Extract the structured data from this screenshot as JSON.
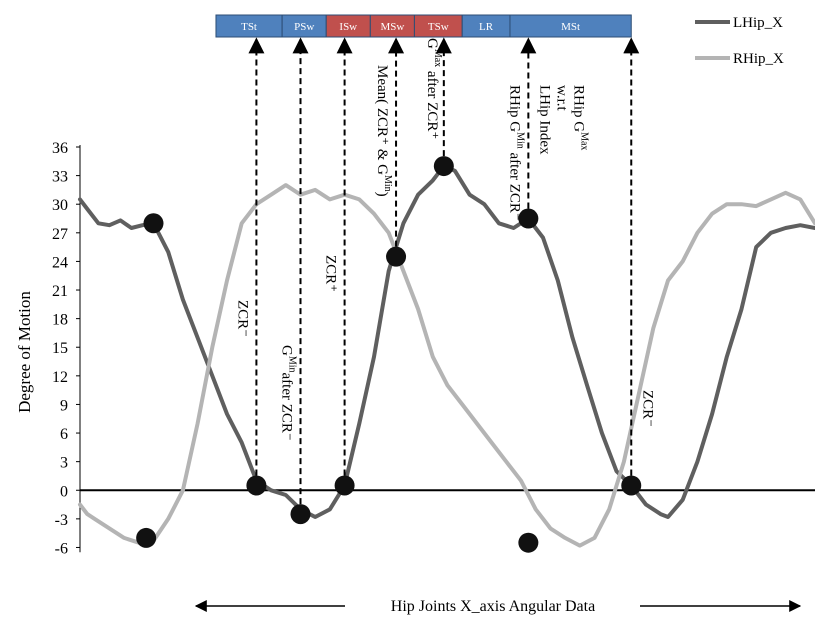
{
  "chart_data": {
    "type": "line",
    "title": "",
    "xlabel": "Hip Joints X_axis Angular Data",
    "ylabel": "Degree of Motion",
    "ylim": [
      -7,
      36
    ],
    "yticks": [
      -6,
      -3,
      0,
      3,
      6,
      9,
      12,
      15,
      18,
      21,
      24,
      27,
      30,
      33,
      36
    ],
    "grid": false,
    "legend_position": "top-right",
    "xrange": [
      0,
      100
    ],
    "series": [
      {
        "name": "LHip_X",
        "color": "#5f5f5f",
        "x": [
          0,
          1,
          2.5,
          4,
          5.5,
          7,
          8.5,
          10,
          12,
          14,
          16,
          18,
          20,
          22,
          24,
          26,
          28,
          30,
          32,
          34,
          36,
          38,
          40,
          42,
          44,
          46,
          48,
          49.5,
          51,
          53,
          55,
          57,
          59,
          61,
          63,
          65,
          67,
          69,
          71,
          73,
          75,
          77,
          78,
          79,
          80,
          82,
          84,
          86,
          88,
          90,
          92,
          94,
          96,
          98,
          100
        ],
        "y": [
          30.5,
          29.5,
          28,
          27.8,
          28.3,
          27.5,
          27.8,
          28,
          25,
          20,
          16,
          12,
          8,
          5,
          1,
          0,
          -0.5,
          -2,
          -2.8,
          -2,
          0.5,
          7,
          14,
          23,
          28,
          31,
          32.5,
          34,
          33.5,
          31,
          30,
          28,
          27.5,
          28.5,
          26.5,
          22,
          16,
          11,
          6,
          2,
          0.5,
          -1.5,
          -2,
          -2.5,
          -2.8,
          -1,
          3,
          8,
          14,
          19,
          25.5,
          27,
          27.5,
          27.8,
          27.5
        ]
      },
      {
        "name": "RHip_X",
        "color": "#b4b4b4",
        "x": [
          0,
          1,
          2,
          4,
          6,
          8,
          10,
          12,
          13,
          14,
          16,
          18,
          20,
          22,
          24,
          26,
          28,
          30,
          32,
          34,
          36,
          38,
          40,
          42,
          44,
          46,
          48,
          50,
          52,
          54,
          56,
          58,
          60,
          62,
          64,
          66,
          68,
          70,
          72,
          74,
          76,
          78,
          80,
          82,
          84,
          86,
          88,
          90,
          92,
          94,
          96,
          98,
          100
        ],
        "y": [
          -1.5,
          -2.5,
          -3,
          -4,
          -5,
          -5.5,
          -5.3,
          -3,
          -1.5,
          0,
          7,
          15,
          22,
          28,
          30,
          31,
          32,
          31,
          31.5,
          30.5,
          31,
          30.5,
          29,
          27,
          23,
          19,
          14,
          11,
          9,
          7,
          5,
          3,
          1,
          -2,
          -4,
          -5,
          -5.8,
          -5,
          -2,
          3,
          10,
          17,
          22,
          24,
          27,
          29,
          30,
          30,
          29.8,
          30.5,
          31.2,
          30.5,
          28
        ]
      }
    ],
    "key_points": [
      {
        "x": 10,
        "y": 28
      },
      {
        "x": 9,
        "y": -5
      },
      {
        "x": 24,
        "y": 0.5
      },
      {
        "x": 30,
        "y": -2.5
      },
      {
        "x": 36,
        "y": 0.5
      },
      {
        "x": 43,
        "y": 24.5
      },
      {
        "x": 49.5,
        "y": 34
      },
      {
        "x": 61,
        "y": 28.5
      },
      {
        "x": 61,
        "y": -5.5
      },
      {
        "x": 75,
        "y": 0.5
      }
    ],
    "phase_bar": [
      {
        "label": "TSt",
        "color": "#4f81bd",
        "x0": 18.5,
        "x1": 27.5
      },
      {
        "label": "PSw",
        "color": "#4f81bd",
        "x0": 27.5,
        "x1": 33.5
      },
      {
        "label": "ISw",
        "color": "#c0504d",
        "x0": 33.5,
        "x1": 39.5
      },
      {
        "label": "MSw",
        "color": "#c0504d",
        "x0": 39.5,
        "x1": 45.5
      },
      {
        "label": "TSw",
        "color": "#c0504d",
        "x0": 45.5,
        "x1": 52
      },
      {
        "label": "LR",
        "color": "#4f81bd",
        "x0": 52,
        "x1": 58.5
      },
      {
        "label": "MSt",
        "color": "#4f81bd",
        "x0": 58.5,
        "x1": 75
      }
    ],
    "event_lines": [
      {
        "x": 24,
        "y_from": 0.5,
        "label_lines": [
          "ZCR⁻"
        ]
      },
      {
        "x": 30,
        "y_from": -2.5,
        "label_lines": [
          "G",
          "Min",
          "after ZCR⁻"
        ]
      },
      {
        "x": 36,
        "y_from": 0.5,
        "label_lines": [
          "ZCR⁺"
        ]
      },
      {
        "x": 43,
        "y_from": 24.5,
        "label_lines": [
          "Mean( ZCR⁺ & G",
          "Min",
          ")"
        ]
      },
      {
        "x": 49.5,
        "y_from": 34,
        "label_lines": [
          "G",
          "Max",
          " after ZCR⁺"
        ]
      },
      {
        "x": 61,
        "y_from": 28.5,
        "label_lines": [
          "RHip G",
          "Min",
          " after ZCR⁻"
        ]
      },
      {
        "x": 61,
        "y_from": 28.5,
        "label_lines": [
          "LHip Index",
          "w.r.t",
          "RHip G",
          "Max"
        ]
      },
      {
        "x": 75,
        "y_from": 0.5,
        "label_lines": [
          "ZCR⁻"
        ]
      }
    ]
  }
}
